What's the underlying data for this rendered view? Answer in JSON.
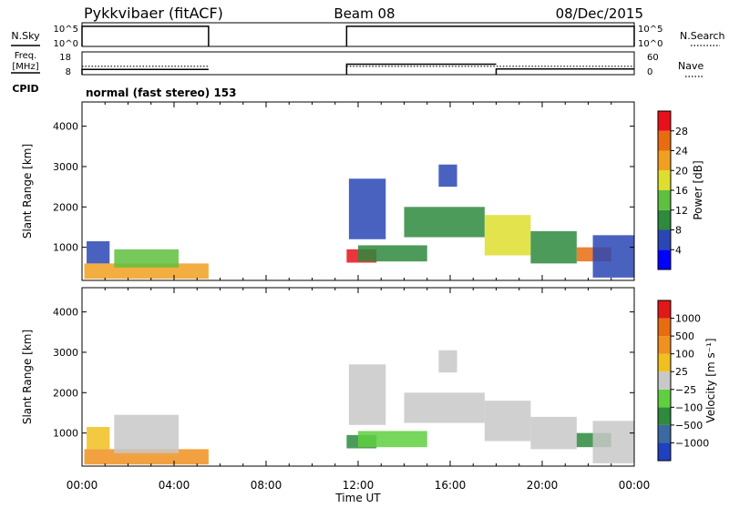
{
  "header": {
    "station": "Pykkvibaer (fitACF)",
    "beam": "Beam 08",
    "date": "08/Dec/2015"
  },
  "strip_labels": {
    "nsky": "N.Sky",
    "nsearch": "N.Search",
    "freq_line1": "Freq.",
    "freq_line2": "[MHz]",
    "nave": "Nave",
    "cpid": "CPID",
    "cpid_value": "normal (fast stereo) 153"
  },
  "colors": {
    "power": [
      "#0000ff",
      "#2a46b4",
      "#2e8a3d",
      "#5fbf3f",
      "#dede2e",
      "#f0a020",
      "#e86c10",
      "#e8101a"
    ],
    "velocity": [
      "#2040c0",
      "#3a6aa0",
      "#2e8a3d",
      "#5fcf3f",
      "#c8c8c8",
      "#f0c020",
      "#f09020",
      "#e86c10",
      "#e01818"
    ]
  },
  "chart_data": [
    {
      "type": "line",
      "panel": "noise",
      "left_axis": {
        "ticks": [
          "10^5",
          "10^0"
        ]
      },
      "right_axis": {
        "ticks": [
          "10^5",
          "10^0"
        ]
      },
      "segments": [
        {
          "t_start": 0.0,
          "t_end": 5.5,
          "level": 0.85
        },
        {
          "t_start": 11.5,
          "t_end": 24.0,
          "level": 0.85
        }
      ]
    },
    {
      "type": "line",
      "panel": "frequency",
      "left_axis": {
        "ticks": [
          "18",
          "8"
        ],
        "range": [
          8,
          18
        ]
      },
      "right_axis": {
        "ticks": [
          "60",
          "0"
        ],
        "range": [
          0,
          60
        ]
      },
      "freq_segments": [
        {
          "t_start": 0.0,
          "t_end": 5.5,
          "value": 10.3
        },
        {
          "t_start": 11.5,
          "t_end": 18.0,
          "value": 12.6
        },
        {
          "t_start": 18.0,
          "t_end": 24.0,
          "value": 10.5
        }
      ],
      "nave_segments": [
        {
          "t_start": 0.0,
          "t_end": 5.5,
          "value": 22
        },
        {
          "t_start": 11.5,
          "t_end": 24.0,
          "value": 22
        }
      ]
    },
    {
      "type": "heatmap",
      "panel": "power",
      "ylabel": "Slant Range [km]",
      "xlabel": "",
      "xlim": [
        0,
        24
      ],
      "ylim": [
        180,
        4600
      ],
      "yticks": [
        "1000",
        "2000",
        "3000",
        "4000"
      ],
      "colorbar": {
        "label": "Power [dB]",
        "ticks": [
          "4",
          "8",
          "12",
          "16",
          "20",
          "24",
          "28"
        ]
      },
      "regions": [
        {
          "t0": 0.1,
          "t1": 5.5,
          "r0": 220,
          "r1": 600,
          "v": 5
        },
        {
          "t0": 1.4,
          "t1": 4.2,
          "r0": 500,
          "r1": 950,
          "v": 3
        },
        {
          "t0": 0.2,
          "t1": 1.2,
          "r0": 600,
          "r1": 1150,
          "v": 1
        },
        {
          "t0": 11.5,
          "t1": 12.8,
          "r0": 620,
          "r1": 950,
          "v": 7
        },
        {
          "t0": 12.0,
          "t1": 15.0,
          "r0": 650,
          "r1": 1050,
          "v": 2
        },
        {
          "t0": 11.6,
          "t1": 13.2,
          "r0": 1200,
          "r1": 2700,
          "v": 1
        },
        {
          "t0": 14.0,
          "t1": 17.5,
          "r0": 1250,
          "r1": 2000,
          "v": 2
        },
        {
          "t0": 17.5,
          "t1": 19.5,
          "r0": 800,
          "r1": 1800,
          "v": 4
        },
        {
          "t0": 19.5,
          "t1": 21.5,
          "r0": 600,
          "r1": 1400,
          "v": 2
        },
        {
          "t0": 21.5,
          "t1": 23.0,
          "r0": 650,
          "r1": 1000,
          "v": 6
        },
        {
          "t0": 22.2,
          "t1": 24.0,
          "r0": 250,
          "r1": 1300,
          "v": 1
        },
        {
          "t0": 15.5,
          "t1": 16.3,
          "r0": 2500,
          "r1": 3050,
          "v": 1
        }
      ]
    },
    {
      "type": "heatmap",
      "panel": "velocity",
      "ylabel": "Slant Range [km]",
      "xlabel": "Time UT",
      "xlim": [
        0,
        24
      ],
      "xticks": [
        "00:00",
        "04:00",
        "08:00",
        "12:00",
        "16:00",
        "20:00",
        "00:00"
      ],
      "ylim": [
        180,
        4600
      ],
      "yticks": [
        "1000",
        "2000",
        "3000",
        "4000"
      ],
      "colorbar": {
        "label": "Velocity [m s⁻¹]",
        "ticks": [
          "1000",
          "500",
          "100",
          "25",
          "−25",
          "−100",
          "−500",
          "−1000"
        ]
      },
      "regions": [
        {
          "t0": 0.1,
          "t1": 5.5,
          "r0": 220,
          "r1": 600,
          "v": 6
        },
        {
          "t0": 1.4,
          "t1": 4.2,
          "r0": 500,
          "r1": 1450,
          "v": 4
        },
        {
          "t0": 0.2,
          "t1": 1.2,
          "r0": 600,
          "r1": 1150,
          "v": 5
        },
        {
          "t0": 11.5,
          "t1": 12.8,
          "r0": 620,
          "r1": 950,
          "v": 2
        },
        {
          "t0": 12.0,
          "t1": 15.0,
          "r0": 650,
          "r1": 1050,
          "v": 3
        },
        {
          "t0": 11.6,
          "t1": 13.2,
          "r0": 1200,
          "r1": 2700,
          "v": 4
        },
        {
          "t0": 14.0,
          "t1": 17.5,
          "r0": 1250,
          "r1": 2000,
          "v": 4
        },
        {
          "t0": 17.5,
          "t1": 19.5,
          "r0": 800,
          "r1": 1800,
          "v": 4
        },
        {
          "t0": 19.5,
          "t1": 21.5,
          "r0": 600,
          "r1": 1400,
          "v": 4
        },
        {
          "t0": 21.5,
          "t1": 23.0,
          "r0": 650,
          "r1": 1000,
          "v": 2
        },
        {
          "t0": 22.2,
          "t1": 24.0,
          "r0": 250,
          "r1": 1300,
          "v": 4
        },
        {
          "t0": 15.5,
          "t1": 16.3,
          "r0": 2500,
          "r1": 3050,
          "v": 4
        }
      ]
    }
  ]
}
